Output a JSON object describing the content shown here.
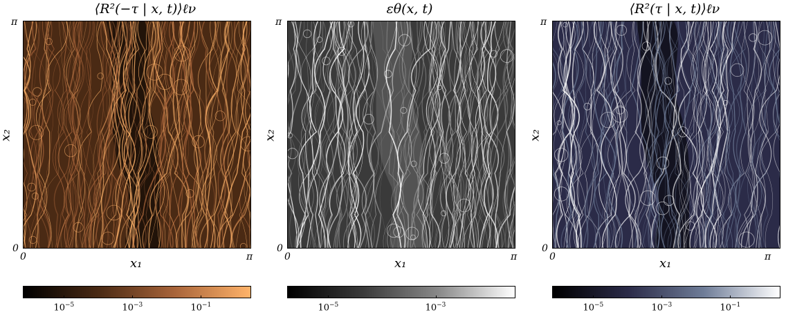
{
  "panels": [
    {
      "title": "⟨R²(−τ | x, t)⟩ℓν",
      "y_top": "π",
      "y_bottom": "0",
      "x_left": "0",
      "x_right": "π",
      "xlabel": "x₁",
      "ylabel": "x₂",
      "colormap": [
        "#000000",
        "#4a2a14",
        "#a8643a",
        "#ffb36a"
      ],
      "colorbar_ticks": [
        {
          "base": "10",
          "exp": "−5"
        },
        {
          "base": "10",
          "exp": "−3"
        },
        {
          "base": "10",
          "exp": "−1"
        }
      ]
    },
    {
      "title": "εθ(x, t)",
      "y_top": "π",
      "y_bottom": "0",
      "x_left": "0",
      "x_right": "π",
      "xlabel": "x₁",
      "ylabel": "x₂",
      "colormap": [
        "#000000",
        "#3a3a3a",
        "#8a8a8a",
        "#ffffff"
      ],
      "colorbar_ticks": [
        {
          "base": "10",
          "exp": "−5"
        },
        {
          "base": "10",
          "exp": "−3"
        }
      ]
    },
    {
      "title": "⟨R²(τ | x, t)⟩ℓν",
      "y_top": "π",
      "y_bottom": "0",
      "x_left": "0",
      "x_right": "π",
      "xlabel": "x₁",
      "ylabel": "x₂",
      "colormap": [
        "#000000",
        "#2b2b48",
        "#6f7d98",
        "#ffffff"
      ],
      "colorbar_ticks": [
        {
          "base": "10",
          "exp": "−5"
        },
        {
          "base": "10",
          "exp": "−3"
        },
        {
          "base": "10",
          "exp": "−1"
        }
      ]
    }
  ]
}
